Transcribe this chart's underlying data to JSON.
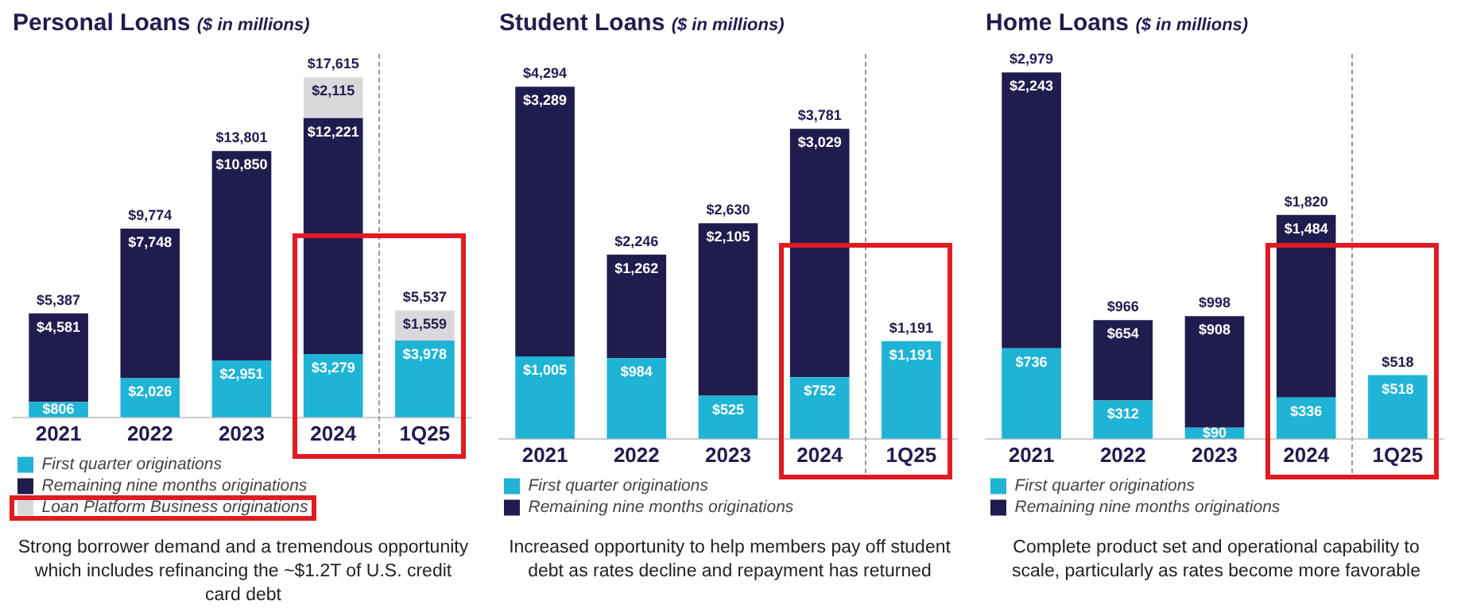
{
  "chart_data": [
    {
      "type": "bar",
      "title": "Personal Loans",
      "subtitle": "($ in millions)",
      "categories": [
        "2021",
        "2022",
        "2023",
        "2024",
        "1Q25"
      ],
      "stacked": true,
      "grid": false,
      "legend": "bottom",
      "series": [
        {
          "name": "First quarter originations",
          "color": "#1fb3d5",
          "values": [
            806,
            2026,
            2951,
            3279,
            3978
          ],
          "value_labels": [
            "$806",
            "$2,026",
            "$2,951",
            "$3,279",
            "$3,978"
          ]
        },
        {
          "name": "Remaining nine months originations",
          "color": "#201c4e",
          "values": [
            4581,
            7748,
            10850,
            12221,
            null
          ],
          "value_labels": [
            "$4,581",
            "$7,748",
            "$10,850",
            "$12,221",
            null
          ]
        },
        {
          "name": "Loan Platform Business originations",
          "color": "#d9d9dc",
          "values": [
            null,
            null,
            null,
            2115,
            1559
          ],
          "value_labels": [
            null,
            null,
            null,
            "$2,115",
            "$1,559"
          ]
        }
      ],
      "totals": [
        "$5,387",
        "$9,774",
        "$13,801",
        "$17,615",
        "$5,537"
      ],
      "annotations": [
        "Strong borrower demand and a tremendous opportunity which includes refinancing the ~$1.2T of U.S. credit card debt"
      ]
    },
    {
      "type": "bar",
      "title": "Student Loans",
      "subtitle": "($ in millions)",
      "categories": [
        "2021",
        "2022",
        "2023",
        "2024",
        "1Q25"
      ],
      "stacked": true,
      "grid": false,
      "legend": "bottom",
      "series": [
        {
          "name": "First quarter originations",
          "color": "#1fb3d5",
          "values": [
            1005,
            984,
            525,
            752,
            1191
          ],
          "value_labels": [
            "$1,005",
            "$984",
            "$525",
            "$752",
            "$1,191"
          ]
        },
        {
          "name": "Remaining nine months originations",
          "color": "#201c4e",
          "values": [
            3289,
            1262,
            2105,
            3029,
            null
          ],
          "value_labels": [
            "$3,289",
            "$1,262",
            "$2,105",
            "$3,029",
            null
          ]
        }
      ],
      "totals": [
        "$4,294",
        "$2,246",
        "$2,630",
        "$3,781",
        "$1,191"
      ],
      "annotations": [
        "Increased opportunity to help members pay off student debt as rates decline and repayment has returned"
      ]
    },
    {
      "type": "bar",
      "title": "Home Loans",
      "subtitle": "($ in millions)",
      "categories": [
        "2021",
        "2022",
        "2023",
        "2024",
        "1Q25"
      ],
      "stacked": true,
      "grid": false,
      "legend": "bottom",
      "series": [
        {
          "name": "First quarter originations",
          "color": "#1fb3d5",
          "values": [
            736,
            312,
            90,
            336,
            518
          ],
          "value_labels": [
            "$736",
            "$312",
            "$90",
            "$336",
            "$518"
          ]
        },
        {
          "name": "Remaining nine months originations",
          "color": "#201c4e",
          "values": [
            2243,
            654,
            908,
            1484,
            null
          ],
          "value_labels": [
            "$2,243",
            "$654",
            "$908",
            "$1,484",
            null
          ]
        }
      ],
      "totals": [
        "$2,979",
        "$966",
        "$998",
        "$1,820",
        "$518"
      ],
      "annotations": [
        "Complete product set and operational capability to scale, particularly as rates become more favorable"
      ]
    }
  ]
}
